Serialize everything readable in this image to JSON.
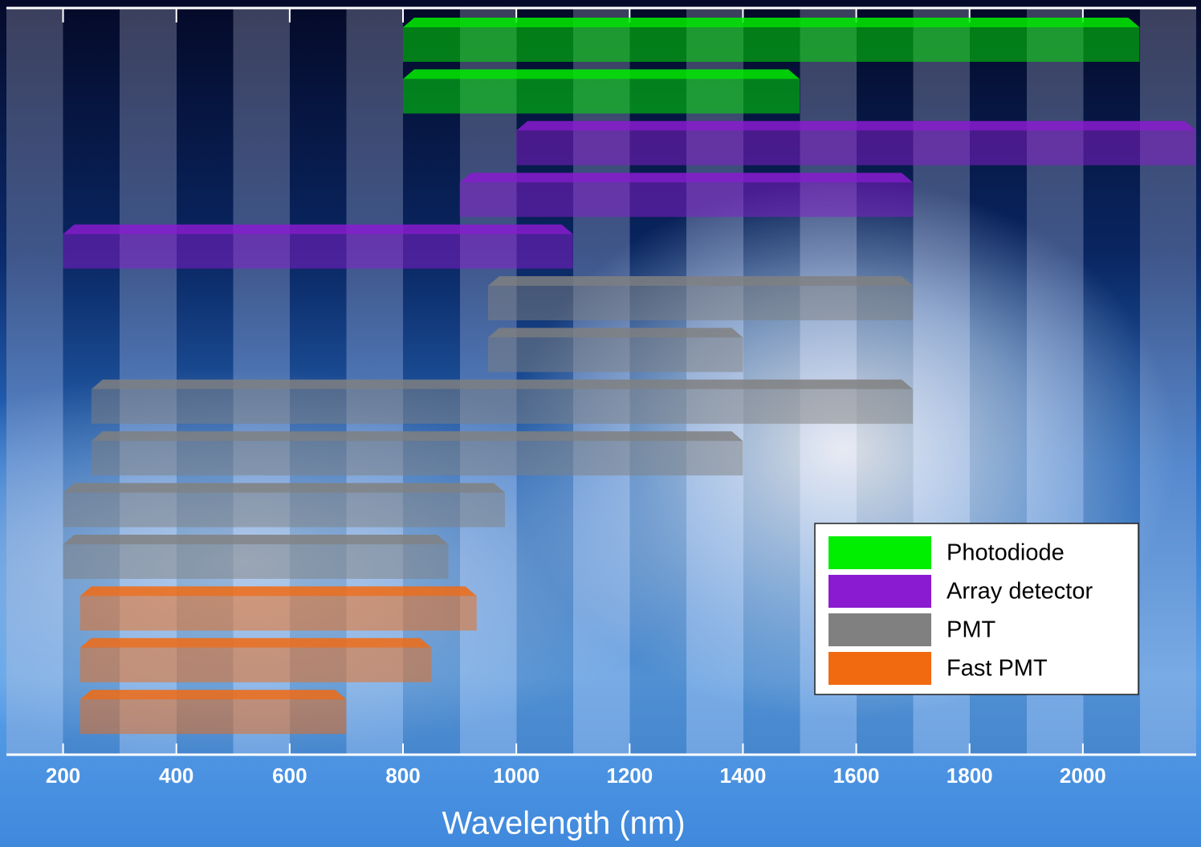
{
  "chart_data": {
    "type": "range_bar",
    "xlabel": "Wavelength (nm)",
    "xlim": [
      100,
      2200
    ],
    "xticks": [
      200,
      400,
      600,
      800,
      1000,
      1200,
      1400,
      1600,
      1800,
      2000
    ],
    "legend": "lower right",
    "series": [
      {
        "name": "Photodiode",
        "color": "#00ee00",
        "ranges": [
          [
            800,
            2100
          ],
          [
            800,
            1500
          ]
        ]
      },
      {
        "name": "Array detector",
        "color": "#8a1bd0",
        "ranges": [
          [
            1000,
            2200
          ],
          [
            900,
            1700
          ],
          [
            200,
            1100
          ]
        ]
      },
      {
        "name": "PMT",
        "color": "#808080",
        "ranges": [
          [
            950,
            1700
          ],
          [
            950,
            1400
          ],
          [
            250,
            1700
          ],
          [
            250,
            1400
          ],
          [
            200,
            980
          ],
          [
            200,
            880
          ]
        ]
      },
      {
        "name": "Fast PMT",
        "color": "#f26a10",
        "ranges": [
          [
            230,
            930
          ],
          [
            230,
            850
          ],
          [
            230,
            700
          ]
        ]
      }
    ]
  }
}
